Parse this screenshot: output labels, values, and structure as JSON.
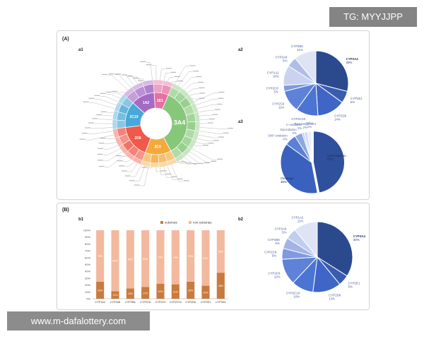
{
  "watermarks": {
    "top_right": "TG: MYYJJPP",
    "bottom_left": "www.m-dafalottery.com"
  },
  "panel_a": {
    "label": "(A)",
    "a1": "a1",
    "a2": "a2",
    "a3": "a3"
  },
  "panel_b": {
    "label": "(B)",
    "b1": "b1",
    "b2": "b2"
  },
  "chart_data": [
    {
      "id": "a2",
      "type": "pie",
      "labels": [
        "CYP3A4",
        "CYP2E1",
        "CYP2D6",
        "CYP2C19",
        "CYP2C9",
        "CYP2C8",
        "CYP1A2",
        "CYP2A6",
        "CYP2B6"
      ],
      "values": [
        29,
        6,
        14,
        11,
        11,
        3,
        10,
        5,
        11
      ],
      "value_labels": [
        "29%",
        "6%",
        "14%",
        "11%",
        "11%",
        "3%",
        "10%",
        "5%",
        "11%"
      ],
      "colors": [
        "#2b4a8e",
        "#3a5cb0",
        "#3f66c6",
        "#4b74d3",
        "#5d82d8",
        "#7f9ae0",
        "#c9d2ef",
        "#aebde9",
        "#dfe4f5"
      ]
    },
    {
      "id": "a3",
      "type": "pie",
      "labels": [
        "Hydroxylation",
        "Cleavage",
        "SNP oxidation",
        "Epoxidation",
        "C-oxidation",
        "Rearrangement",
        "Other"
      ],
      "values": [
        47,
        38,
        6,
        4,
        1,
        2,
        2
      ],
      "value_labels": [
        "47%",
        "38%",
        "6%",
        "4%",
        "1%",
        "2%",
        "2%"
      ],
      "colors": [
        "#2f509c",
        "#3a61bd",
        "#5b80d6",
        "#8ea7e2",
        "#b7c7ee",
        "#d4dcf4",
        "#e8ecf8"
      ]
    },
    {
      "id": "b1",
      "type": "bar",
      "categories": [
        "CYP1A2",
        "CYP2A6",
        "CYP2B6",
        "CYP2C8",
        "CYP2C9",
        "CYP2C19",
        "CYP2D6",
        "CYP2E1",
        "CYP3A4"
      ],
      "series": [
        {
          "name": "substrate",
          "values": [
            25,
            11,
            15,
            17,
            22,
            21,
            25,
            19,
            38
          ],
          "color": "#c97a3f"
        },
        {
          "name": "non-substrate",
          "values": [
            75,
            89,
            85,
            83,
            78,
            79,
            75,
            81,
            62
          ],
          "color": "#f3b99e"
        }
      ],
      "ylim": [
        0,
        100
      ],
      "yticks": [
        "0%",
        "10%",
        "20%",
        "30%",
        "40%",
        "50%",
        "60%",
        "70%",
        "80%",
        "90%",
        "100%"
      ]
    },
    {
      "id": "b2",
      "type": "pie",
      "labels": [
        "CYP3A4",
        "CYP2E1",
        "CYP2D6",
        "CYP2C19",
        "CYP2C9",
        "CYP2C8",
        "CYP2B6",
        "CYP2A6",
        "CYP1A2"
      ],
      "values": [
        34,
        5,
        13,
        10,
        12,
        5,
        5,
        5,
        11
      ],
      "value_labels": [
        "34%",
        "5%",
        "13%",
        "10%",
        "12%",
        "5%",
        "5%",
        "5%",
        "11%"
      ],
      "colors": [
        "#2b4a8e",
        "#3a5cb0",
        "#3f66c6",
        "#4b74d3",
        "#5d82d8",
        "#7f9ae0",
        "#a2b4e6",
        "#c0cdef",
        "#dfe4f5"
      ]
    },
    {
      "id": "a1",
      "type": "sunburst",
      "inner_labels": [
        "3A4",
        "2C9",
        "2D6",
        "2C19",
        "1A2",
        "2E1"
      ],
      "inner_values": [
        29,
        11,
        14,
        11,
        10,
        6
      ],
      "inner_colors": [
        "#86c77a",
        "#f3a93b",
        "#ef5a4a",
        "#4aa8d8",
        "#a46bc5",
        "#e76fa3"
      ]
    }
  ]
}
